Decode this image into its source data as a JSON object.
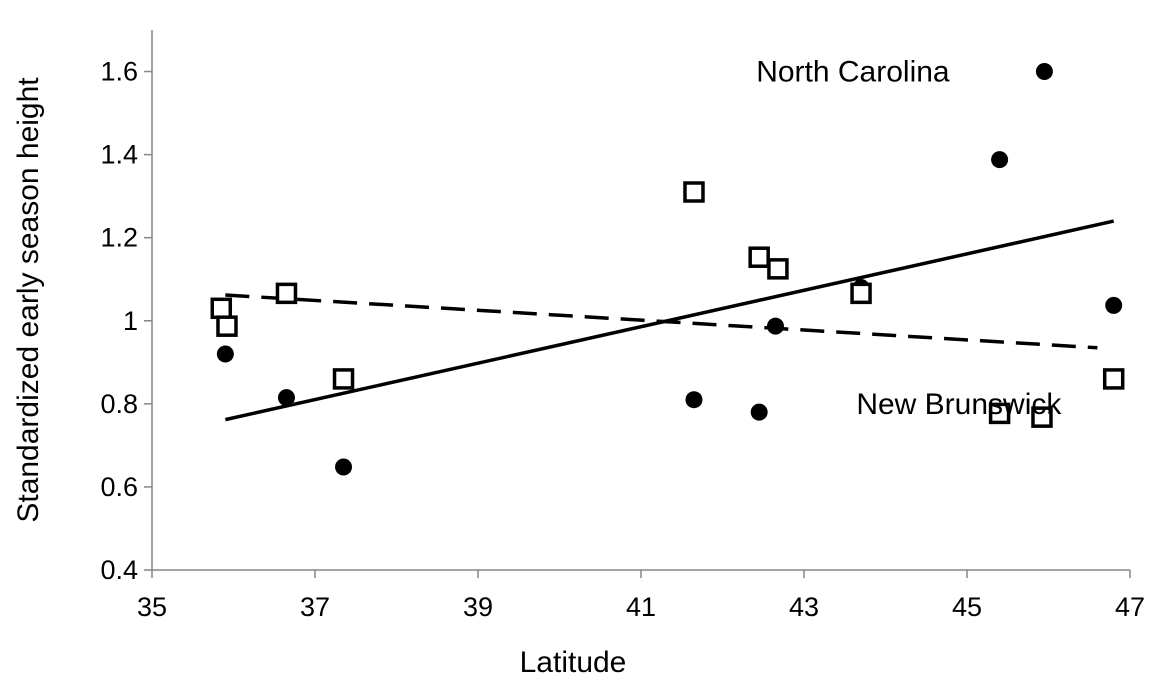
{
  "chart_data": {
    "type": "scatter",
    "xlabel": "Latitude",
    "ylabel": "Standardized early season height",
    "xlim": [
      35,
      47
    ],
    "ylim": [
      0.4,
      1.7
    ],
    "xticks": [
      "35",
      "37",
      "39",
      "41",
      "43",
      "45",
      "47"
    ],
    "yticks": [
      "0.4",
      "0.6",
      "0.8",
      "1",
      "1.2",
      "1.4",
      "1.6"
    ],
    "grid": false,
    "legend": "none",
    "annotations": [
      {
        "text": "North Carolina",
        "x": 43.6,
        "y": 1.6
      },
      {
        "text": "New Brunswick",
        "x": 44.9,
        "y": 0.8
      }
    ],
    "series": [
      {
        "marker": "filled-circle",
        "color": "#000000",
        "points": [
          {
            "x": 35.9,
            "y": 0.92
          },
          {
            "x": 36.65,
            "y": 0.815
          },
          {
            "x": 37.35,
            "y": 0.648
          },
          {
            "x": 41.65,
            "y": 0.81
          },
          {
            "x": 42.45,
            "y": 0.78
          },
          {
            "x": 42.65,
            "y": 0.987
          },
          {
            "x": 43.7,
            "y": 1.08
          },
          {
            "x": 45.4,
            "y": 1.388
          },
          {
            "x": 45.95,
            "y": 1.6
          },
          {
            "x": 46.8,
            "y": 1.037
          }
        ],
        "trendline": {
          "style": "solid",
          "x": [
            35.9,
            46.8
          ],
          "y": [
            0.762,
            1.24
          ]
        }
      },
      {
        "marker": "open-square",
        "color": "#000000",
        "points": [
          {
            "x": 35.85,
            "y": 1.03
          },
          {
            "x": 35.92,
            "y": 0.987
          },
          {
            "x": 36.65,
            "y": 1.066
          },
          {
            "x": 37.35,
            "y": 0.86
          },
          {
            "x": 41.65,
            "y": 1.31
          },
          {
            "x": 42.45,
            "y": 1.153
          },
          {
            "x": 42.68,
            "y": 1.125
          },
          {
            "x": 43.7,
            "y": 1.066
          },
          {
            "x": 45.4,
            "y": 0.777
          },
          {
            "x": 45.92,
            "y": 0.768
          },
          {
            "x": 46.8,
            "y": 0.86
          }
        ],
        "trendline": {
          "style": "dashed",
          "x": [
            35.9,
            46.6
          ],
          "y": [
            1.062,
            0.935
          ]
        }
      }
    ]
  }
}
